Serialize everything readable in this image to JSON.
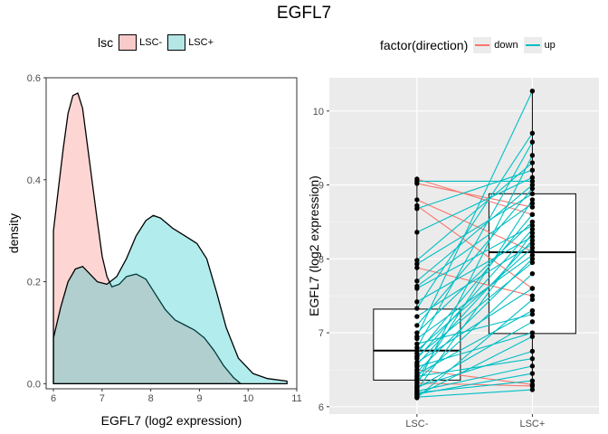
{
  "title": "EGFL7",
  "chart_data": [
    {
      "type": "area",
      "chart": "density",
      "xlabel": "EGFL7 (log2 expression)",
      "ylabel": "density",
      "xlim": [
        5.85,
        11.0
      ],
      "ylim": [
        -0.01,
        0.6
      ],
      "xticks": [
        6,
        7,
        8,
        9,
        10,
        11
      ],
      "yticks": [
        0.0,
        0.2,
        0.4,
        0.6
      ],
      "ytick_labels": [
        "0.0",
        "0.2",
        "0.4",
        "0.6"
      ],
      "grid": false,
      "legend": {
        "title": "lsc",
        "position": "top"
      },
      "series": [
        {
          "name": "LSC-",
          "color": "#F8766D",
          "fill": "#F8CBCA",
          "points": [
            [
              6.0,
              0.3
            ],
            [
              6.1,
              0.38
            ],
            [
              6.2,
              0.46
            ],
            [
              6.3,
              0.53
            ],
            [
              6.4,
              0.565
            ],
            [
              6.5,
              0.57
            ],
            [
              6.6,
              0.54
            ],
            [
              6.75,
              0.43
            ],
            [
              6.9,
              0.32
            ],
            [
              7.0,
              0.25
            ],
            [
              7.1,
              0.21
            ],
            [
              7.2,
              0.19
            ],
            [
              7.35,
              0.195
            ],
            [
              7.5,
              0.21
            ],
            [
              7.7,
              0.215
            ],
            [
              7.9,
              0.205
            ],
            [
              8.1,
              0.175
            ],
            [
              8.3,
              0.145
            ],
            [
              8.5,
              0.125
            ],
            [
              8.7,
              0.115
            ],
            [
              8.9,
              0.105
            ],
            [
              9.1,
              0.09
            ],
            [
              9.3,
              0.065
            ],
            [
              9.5,
              0.035
            ],
            [
              9.7,
              0.012
            ],
            [
              9.85,
              0.0
            ]
          ]
        },
        {
          "name": "LSC+",
          "color": "#00BFC4",
          "fill": "#B4E6E6",
          "points": [
            [
              6.0,
              0.09
            ],
            [
              6.15,
              0.15
            ],
            [
              6.3,
              0.2
            ],
            [
              6.45,
              0.225
            ],
            [
              6.6,
              0.23
            ],
            [
              6.75,
              0.215
            ],
            [
              6.9,
              0.2
            ],
            [
              7.1,
              0.195
            ],
            [
              7.3,
              0.21
            ],
            [
              7.5,
              0.245
            ],
            [
              7.7,
              0.29
            ],
            [
              7.9,
              0.32
            ],
            [
              8.05,
              0.33
            ],
            [
              8.2,
              0.325
            ],
            [
              8.45,
              0.305
            ],
            [
              8.7,
              0.29
            ],
            [
              8.95,
              0.275
            ],
            [
              9.15,
              0.245
            ],
            [
              9.35,
              0.18
            ],
            [
              9.55,
              0.11
            ],
            [
              9.8,
              0.05
            ],
            [
              10.1,
              0.02
            ],
            [
              10.4,
              0.01
            ],
            [
              10.8,
              0.005
            ]
          ]
        }
      ]
    },
    {
      "type": "scatter",
      "chart": "boxplot-paired",
      "xlabel": "",
      "ylabel": "EGFL7 (log2 expression)",
      "categories": [
        "LSC-",
        "LSC+"
      ],
      "ylim": [
        5.9,
        10.45
      ],
      "yticks": [
        6,
        7,
        8,
        9,
        10
      ],
      "grid": true,
      "legend": {
        "title": "factor(direction)",
        "position": "top",
        "entries": [
          "down",
          "up"
        ]
      },
      "colors": {
        "down": "#F8766D",
        "up": "#00BFC4"
      },
      "boxes": [
        {
          "category": "LSC-",
          "q1": 6.36,
          "median": 6.76,
          "q3": 7.32,
          "whisker_low": 6.12,
          "whisker_high": 9.08
        },
        {
          "category": "LSC+",
          "q1": 6.99,
          "median": 8.09,
          "q3": 8.88,
          "whisker_low": 6.23,
          "whisker_high": 10.27
        }
      ],
      "pairs": [
        [
          9.08,
          8.6,
          "down"
        ],
        [
          9.05,
          9.05,
          "up"
        ],
        [
          9.02,
          8.7,
          "down"
        ],
        [
          8.8,
          8.1,
          "down"
        ],
        [
          8.72,
          7.6,
          "down"
        ],
        [
          8.68,
          9.2,
          "up"
        ],
        [
          8.36,
          9.1,
          "up"
        ],
        [
          7.98,
          9.3,
          "up"
        ],
        [
          7.93,
          8.88,
          "up"
        ],
        [
          7.88,
          7.5,
          "down"
        ],
        [
          7.7,
          9.0,
          "up"
        ],
        [
          7.63,
          8.75,
          "up"
        ],
        [
          7.6,
          8.45,
          "up"
        ],
        [
          7.42,
          8.3,
          "up"
        ],
        [
          7.33,
          9.7,
          "up"
        ],
        [
          7.22,
          8.2,
          "up"
        ],
        [
          7.1,
          8.95,
          "up"
        ],
        [
          7.0,
          8.5,
          "up"
        ],
        [
          6.95,
          10.27,
          "up"
        ],
        [
          6.92,
          8.05,
          "up"
        ],
        [
          6.85,
          7.25,
          "up"
        ],
        [
          6.8,
          9.58,
          "up"
        ],
        [
          6.76,
          8.15,
          "up"
        ],
        [
          6.72,
          8.6,
          "up"
        ],
        [
          6.68,
          7.95,
          "up"
        ],
        [
          6.65,
          8.4,
          "up"
        ],
        [
          6.6,
          7.6,
          "up"
        ],
        [
          6.57,
          8.25,
          "up"
        ],
        [
          6.54,
          7.0,
          "up"
        ],
        [
          6.5,
          6.3,
          "down"
        ],
        [
          6.47,
          8.0,
          "up"
        ],
        [
          6.44,
          7.3,
          "up"
        ],
        [
          6.41,
          6.65,
          "up"
        ],
        [
          6.38,
          8.8,
          "up"
        ],
        [
          6.35,
          7.8,
          "up"
        ],
        [
          6.32,
          6.28,
          "down"
        ],
        [
          6.29,
          9.4,
          "up"
        ],
        [
          6.27,
          6.75,
          "up"
        ],
        [
          6.25,
          7.15,
          "up"
        ],
        [
          6.23,
          8.35,
          "up"
        ],
        [
          6.21,
          6.55,
          "up"
        ],
        [
          6.19,
          6.35,
          "up"
        ],
        [
          6.17,
          6.45,
          "up"
        ],
        [
          6.15,
          6.95,
          "up"
        ],
        [
          6.13,
          6.23,
          "up"
        ],
        [
          6.12,
          7.45,
          "up"
        ]
      ]
    }
  ]
}
